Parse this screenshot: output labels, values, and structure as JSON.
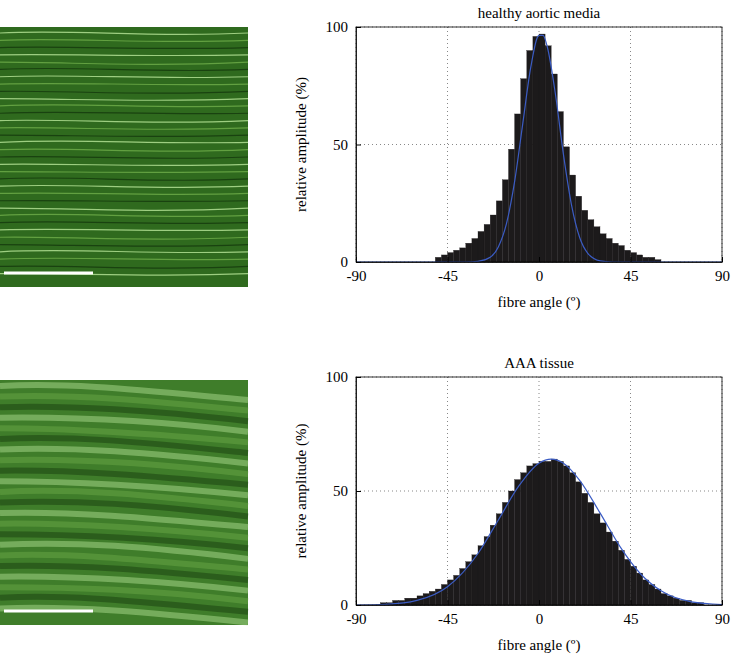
{
  "chart_data": [
    {
      "type": "histogram",
      "title": "healthy aortic media",
      "x_label": "fibre angle (º)",
      "y_label": "relative amplitude (%)",
      "bins": [
        -90,
        -87,
        -84,
        -81,
        -78,
        -75,
        -72,
        -69,
        -66,
        -63,
        -60,
        -57,
        -54,
        -51,
        -48,
        -45,
        -42,
        -39,
        -36,
        -33,
        -30,
        -27,
        -24,
        -21,
        -18,
        -15,
        -12,
        -9,
        -6,
        -3,
        0,
        3,
        6,
        9,
        12,
        15,
        18,
        21,
        24,
        27,
        30,
        33,
        36,
        39,
        42,
        45,
        48,
        51,
        54,
        57,
        60,
        63,
        66,
        69,
        72,
        75,
        78,
        81,
        84,
        87,
        90
      ],
      "counts": [
        0,
        0,
        0,
        0,
        0,
        0,
        0,
        0,
        0,
        0,
        0,
        0,
        0,
        2,
        3,
        4,
        5,
        6,
        8,
        10,
        13,
        16,
        20,
        26,
        35,
        48,
        63,
        78,
        90,
        96,
        97,
        92,
        80,
        64,
        49,
        37,
        28,
        22,
        18,
        15,
        12,
        10,
        8,
        7,
        5,
        4,
        3,
        2,
        2,
        1,
        0,
        0,
        0,
        0,
        0,
        0,
        0,
        0,
        0,
        0
      ],
      "color": "#1c1a1b",
      "series": [
        {
          "type": "line",
          "color": "#3b5cc4",
          "x": [
            -90,
            -60,
            -45,
            -36,
            -30,
            -24,
            -20,
            -16,
            -12,
            -8,
            -4,
            0,
            2,
            4,
            8,
            12,
            16,
            20,
            24,
            30,
            36,
            45,
            60,
            90
          ],
          "values": [
            0,
            0,
            0,
            0,
            0.3,
            2,
            6.4,
            16.3,
            34.2,
            58.8,
            83.1,
            96.4,
            96.4,
            91.8,
            71.9,
            45.9,
            24.2,
            10.4,
            3.7,
            0.5,
            0,
            0,
            0,
            0
          ]
        }
      ],
      "xlim": [
        -90,
        90
      ],
      "xticks": [
        -90,
        -45,
        0,
        45,
        90
      ],
      "ylim": [
        0,
        100
      ],
      "yticks": [
        0,
        50,
        100
      ],
      "grid": true
    },
    {
      "type": "histogram",
      "title": "AAA tissue",
      "x_label": "fibre angle (º)",
      "y_label": "relative amplitude (%)",
      "bins": [
        -90,
        -87,
        -84,
        -81,
        -78,
        -75,
        -72,
        -69,
        -66,
        -63,
        -60,
        -57,
        -54,
        -51,
        -48,
        -45,
        -42,
        -39,
        -36,
        -33,
        -30,
        -27,
        -24,
        -21,
        -18,
        -15,
        -12,
        -9,
        -6,
        -3,
        0,
        3,
        6,
        9,
        12,
        15,
        18,
        21,
        24,
        27,
        30,
        33,
        36,
        39,
        42,
        45,
        48,
        51,
        54,
        57,
        60,
        63,
        66,
        69,
        72,
        75,
        78,
        81,
        84,
        87,
        90
      ],
      "counts": [
        0,
        0,
        0,
        0,
        1,
        1,
        2,
        2,
        3,
        3,
        4,
        5,
        6,
        7,
        9,
        11,
        13,
        16,
        19,
        22,
        26,
        30,
        35,
        40,
        45,
        50,
        55,
        58,
        61,
        62,
        63,
        63,
        64,
        63,
        61,
        58,
        54,
        49,
        45,
        40,
        36,
        32,
        28,
        24,
        20,
        17,
        14,
        11,
        9,
        7,
        5,
        4,
        3,
        2,
        2,
        1,
        1,
        0,
        0,
        0
      ],
      "color": "#1c1a1b",
      "series": [
        {
          "type": "line",
          "color": "#3b5cc4",
          "x": [
            -90,
            -75,
            -60,
            -45,
            -30,
            -20,
            -10,
            0,
            6,
            12,
            20,
            30,
            40,
            50,
            60,
            75,
            90
          ],
          "values": [
            0,
            0.3,
            2,
            8,
            22.6,
            37.3,
            52.1,
            62.2,
            64,
            62.2,
            54.7,
            40.4,
            25.4,
            13.6,
            6.2,
            1.4,
            0.2
          ]
        }
      ],
      "xlim": [
        -90,
        90
      ],
      "xticks": [
        -90,
        -45,
        0,
        45,
        90
      ],
      "ylim": [
        0,
        100
      ],
      "yticks": [
        0,
        50,
        100
      ],
      "grid": true
    }
  ]
}
